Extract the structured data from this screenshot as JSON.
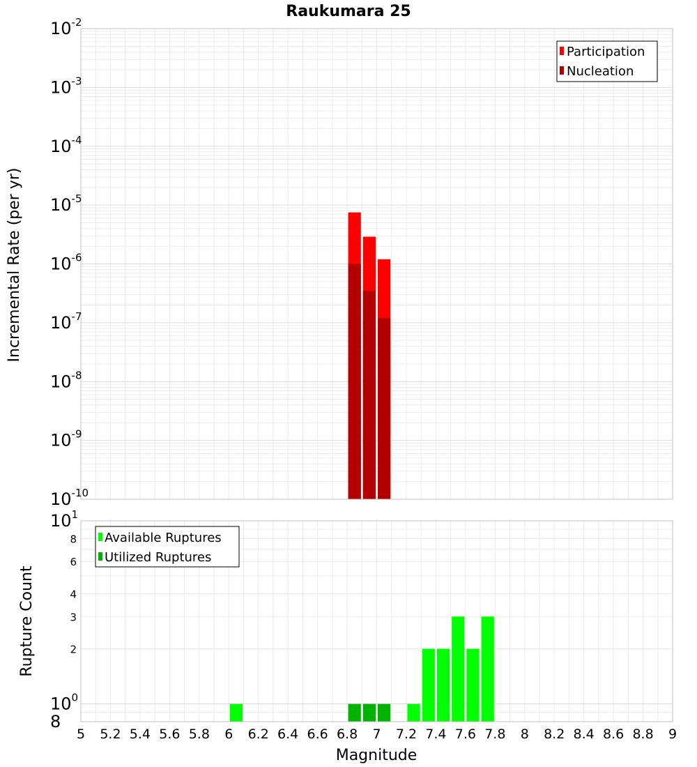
{
  "chart_data": [
    {
      "type": "bar",
      "title": "Raukumara 25",
      "xlabel": "",
      "ylabel": "Incremental Rate (per yr)",
      "yscale": "log",
      "xlim": [
        5,
        9
      ],
      "ylim": [
        1e-10,
        0.01
      ],
      "grid": true,
      "legend_placement": "top-right",
      "bin_width": 0.1,
      "y_tick_labels": [
        {
          "base": "10",
          "exp": "-10",
          "value": 1e-10
        },
        {
          "base": "10",
          "exp": "-9",
          "value": 1e-09
        },
        {
          "base": "10",
          "exp": "-8",
          "value": 1e-08
        },
        {
          "base": "10",
          "exp": "-7",
          "value": 1e-07
        },
        {
          "base": "10",
          "exp": "-6",
          "value": 1e-06
        },
        {
          "base": "10",
          "exp": "-5",
          "value": 1e-05
        },
        {
          "base": "10",
          "exp": "-4",
          "value": 0.0001
        },
        {
          "base": "10",
          "exp": "-3",
          "value": 0.001
        },
        {
          "base": "10",
          "exp": "-2",
          "value": 0.01
        }
      ],
      "series": [
        {
          "name": "Participation",
          "color": "#ff0000",
          "points": [
            {
              "x": 6.85,
              "y": 7.5e-06
            },
            {
              "x": 6.95,
              "y": 2.9e-06
            },
            {
              "x": 7.05,
              "y": 1.2e-06
            }
          ]
        },
        {
          "name": "Nucleation",
          "color": "#b30000",
          "points": [
            {
              "x": 6.85,
              "y": 1e-06
            },
            {
              "x": 6.95,
              "y": 3.5e-07
            },
            {
              "x": 7.05,
              "y": 1.2e-07
            }
          ]
        }
      ]
    },
    {
      "type": "bar",
      "title": "",
      "xlabel": "Magnitude",
      "ylabel": "Rupture Count",
      "yscale": "log",
      "xlim": [
        5,
        9
      ],
      "ylim": [
        0.8,
        10
      ],
      "grid": true,
      "legend_placement": "top-left",
      "bin_width": 0.1,
      "x_tick_labels": [
        "5",
        "5.2",
        "5.4",
        "5.6",
        "5.8",
        "6",
        "6.2",
        "6.4",
        "6.6",
        "6.8",
        "7",
        "7.2",
        "7.4",
        "7.6",
        "7.8",
        "8",
        "8.2",
        "8.4",
        "8.6",
        "8.8",
        "9"
      ],
      "y_tick_labels": [
        {
          "base": "8",
          "exp": "",
          "value": 0.8,
          "style": "big"
        },
        {
          "base": "10",
          "exp": "0",
          "value": 1,
          "style": "big"
        },
        {
          "base": "2",
          "exp": "",
          "value": 2,
          "style": "small"
        },
        {
          "base": "3",
          "exp": "",
          "value": 3,
          "style": "small"
        },
        {
          "base": "4",
          "exp": "",
          "value": 4,
          "style": "small"
        },
        {
          "base": "6",
          "exp": "",
          "value": 6,
          "style": "small"
        },
        {
          "base": "8",
          "exp": "",
          "value": 8,
          "style": "small"
        },
        {
          "base": "10",
          "exp": "1",
          "value": 10,
          "style": "big"
        }
      ],
      "series": [
        {
          "name": "Available Ruptures",
          "color": "#00ff00",
          "points": [
            {
              "x": 6.05,
              "y": 1
            },
            {
              "x": 7.25,
              "y": 1
            },
            {
              "x": 7.35,
              "y": 2
            },
            {
              "x": 7.45,
              "y": 2
            },
            {
              "x": 7.55,
              "y": 3
            },
            {
              "x": 7.65,
              "y": 2
            },
            {
              "x": 7.75,
              "y": 3
            }
          ]
        },
        {
          "name": "Utilized Ruptures",
          "color": "#00b300",
          "points": [
            {
              "x": 6.85,
              "y": 1
            },
            {
              "x": 6.95,
              "y": 1
            },
            {
              "x": 7.05,
              "y": 1
            }
          ]
        }
      ]
    }
  ]
}
